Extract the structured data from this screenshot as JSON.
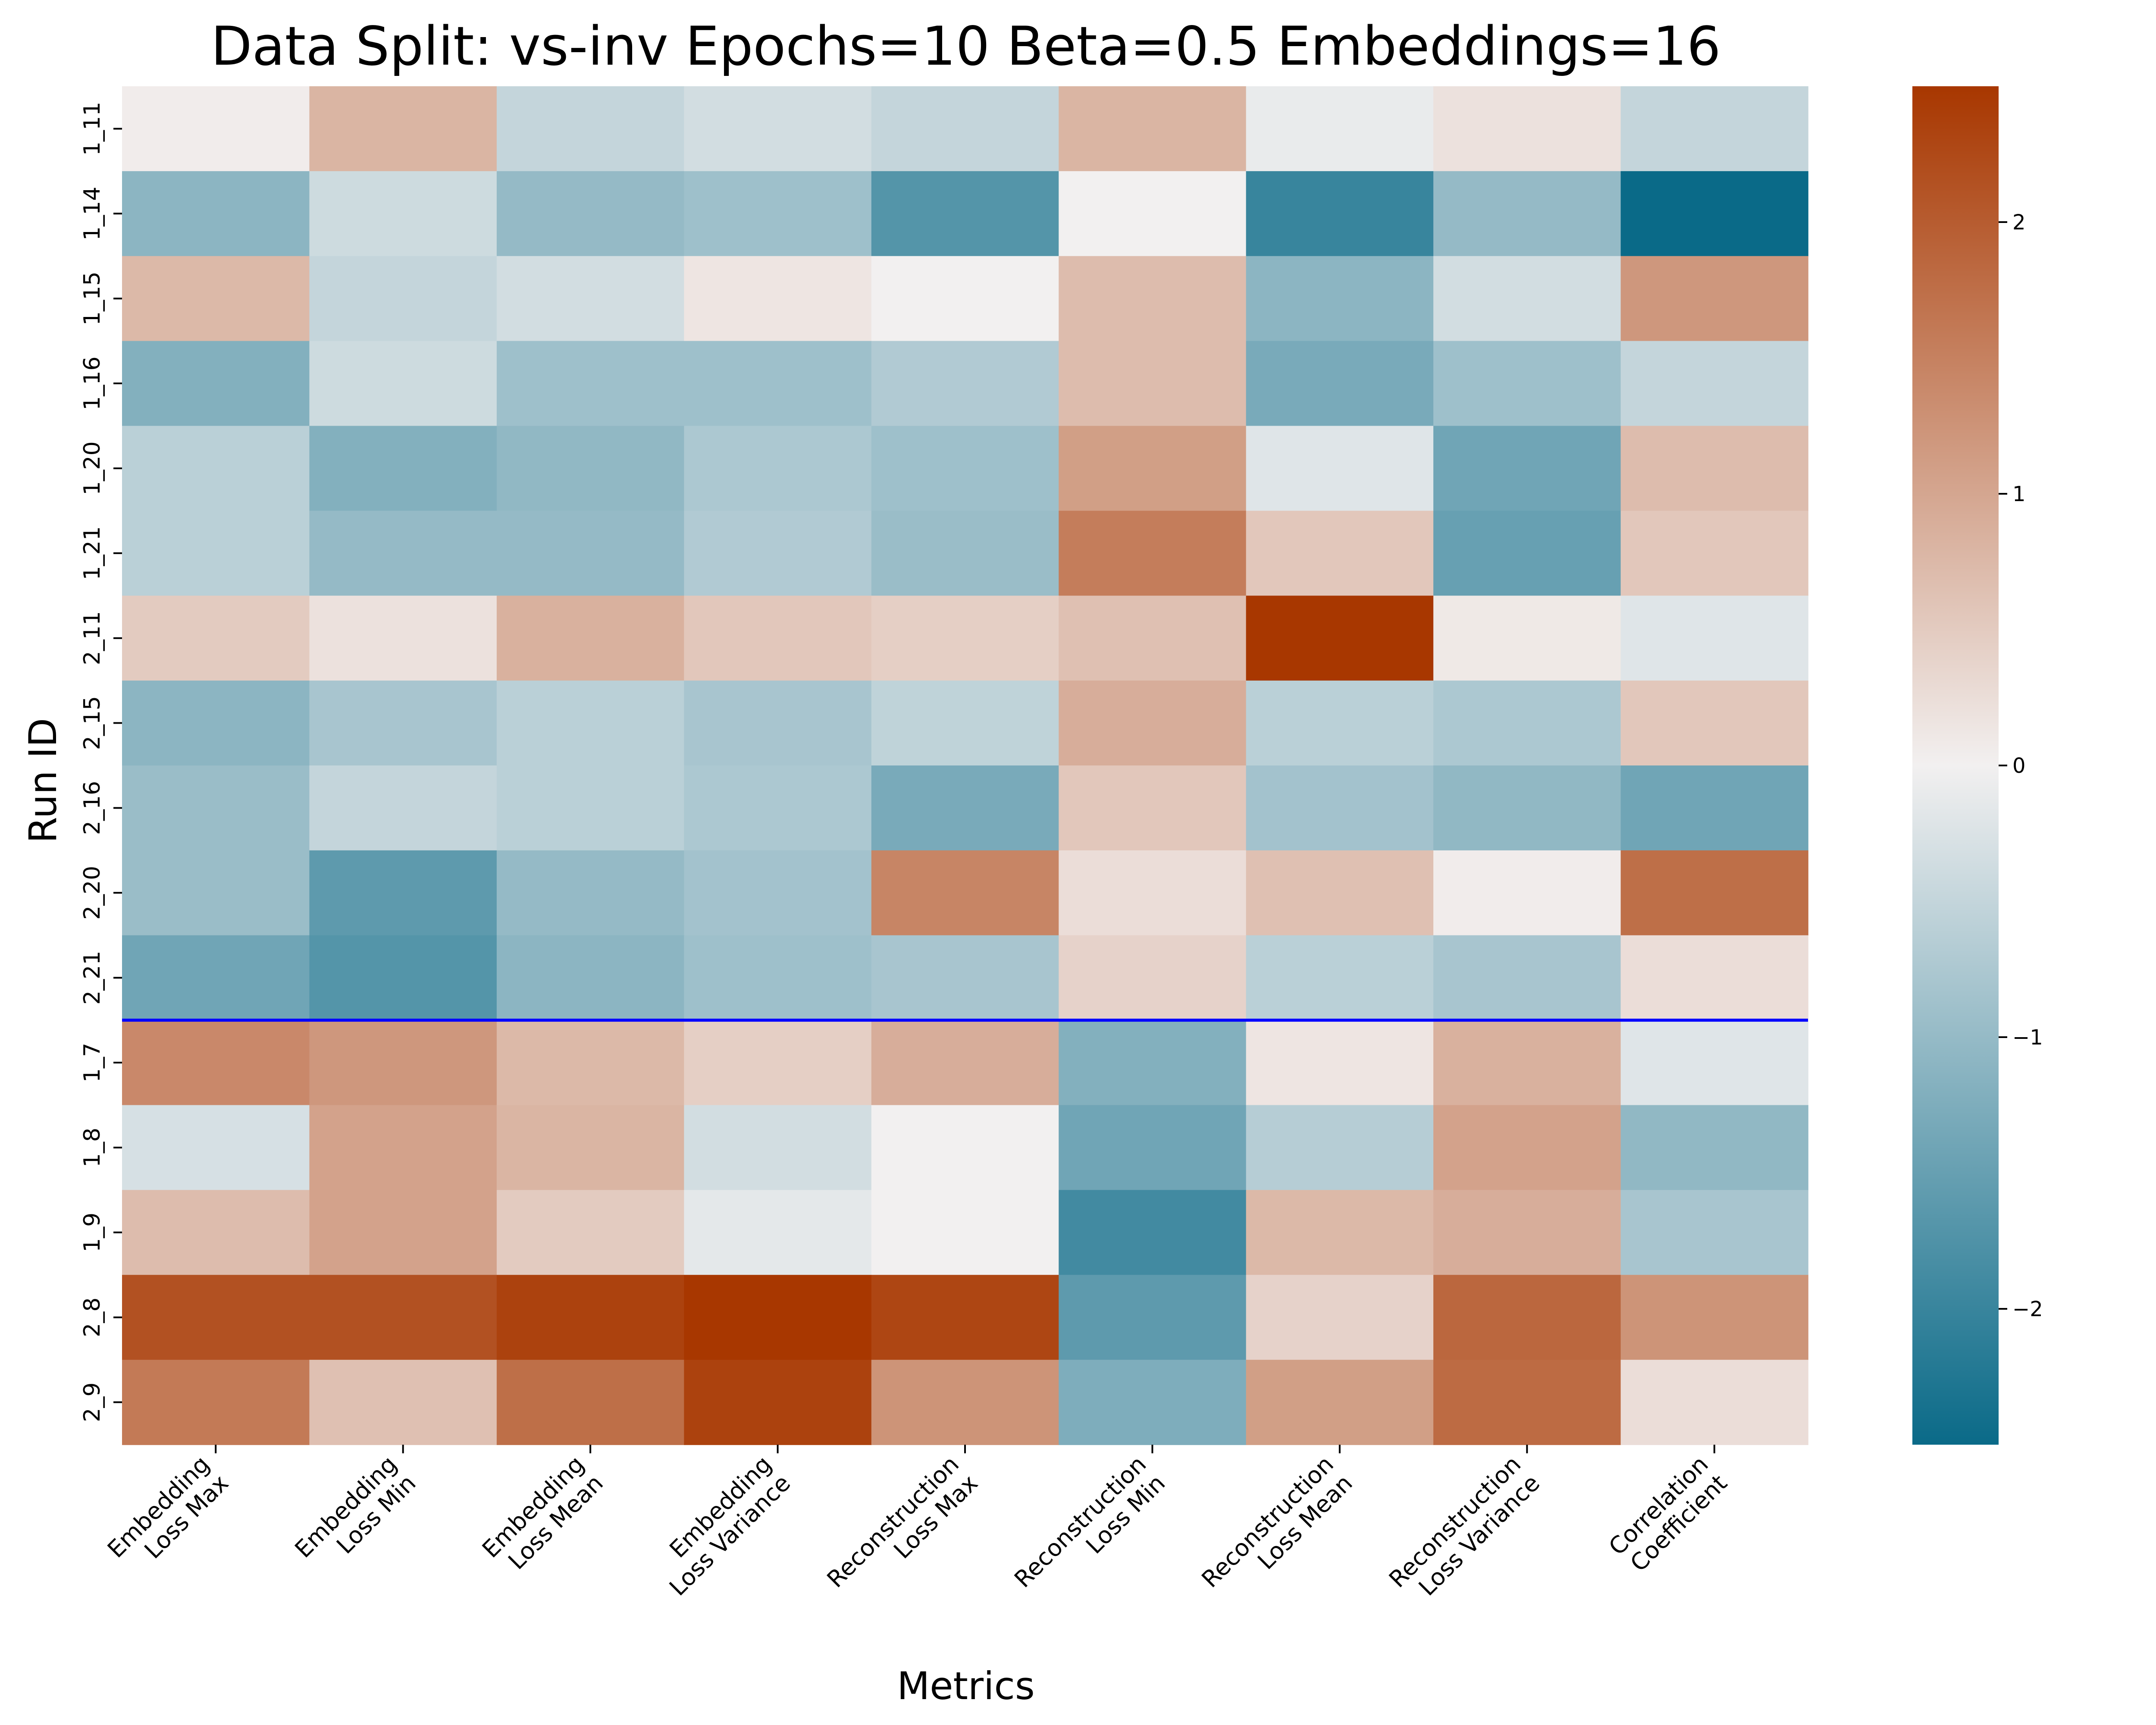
{
  "chart_data": {
    "type": "heatmap",
    "title": "Data Split: vs-inv Epochs=10 Beta=0.5 Embeddings=16",
    "xlabel": "Metrics",
    "ylabel": "Run ID",
    "x_categories": [
      [
        "Embedding",
        "Loss Max"
      ],
      [
        "Embedding",
        "Loss Min"
      ],
      [
        "Embedding",
        "Loss Mean"
      ],
      [
        "Embedding",
        "Loss Variance"
      ],
      [
        "Reconstruction",
        "Loss Max"
      ],
      [
        "Reconstruction",
        "Loss Min"
      ],
      [
        "Reconstruction",
        "Loss Mean"
      ],
      [
        "Reconstruction",
        "Loss Variance"
      ],
      [
        "Correlation",
        "Coefficient"
      ]
    ],
    "y_categories": [
      "1_11",
      "1_14",
      "1_15",
      "1_16",
      "1_20",
      "1_21",
      "2_11",
      "2_15",
      "2_16",
      "2_20",
      "2_21",
      "1_7",
      "1_8",
      "1_9",
      "2_8",
      "2_9"
    ],
    "values": [
      [
        0.05,
        0.8,
        -0.5,
        -0.35,
        -0.5,
        0.8,
        -0.1,
        0.2,
        -0.5
      ],
      [
        -1.1,
        -0.4,
        -1.0,
        -0.9,
        -1.7,
        0.0,
        -2.0,
        -1.0,
        -2.5
      ],
      [
        0.75,
        -0.5,
        -0.35,
        0.15,
        0.0,
        0.7,
        -1.1,
        -0.35,
        1.2
      ],
      [
        -1.2,
        -0.4,
        -0.9,
        -0.9,
        -0.7,
        0.7,
        -1.3,
        -0.9,
        -0.5
      ],
      [
        -0.6,
        -1.2,
        -1.05,
        -0.75,
        -0.9,
        1.1,
        -0.2,
        -1.4,
        0.7
      ],
      [
        -0.6,
        -1.0,
        -1.0,
        -0.7,
        -0.95,
        1.55,
        0.55,
        -1.5,
        0.55
      ],
      [
        0.5,
        0.2,
        0.85,
        0.55,
        0.45,
        0.65,
        2.5,
        0.1,
        -0.2
      ],
      [
        -1.1,
        -0.8,
        -0.6,
        -0.8,
        -0.55,
        0.9,
        -0.6,
        -0.75,
        0.55
      ],
      [
        -0.95,
        -0.5,
        -0.6,
        -0.75,
        -1.3,
        0.55,
        -0.85,
        -1.05,
        -1.4
      ],
      [
        -0.95,
        -1.6,
        -1.0,
        -0.85,
        1.45,
        0.25,
        0.65,
        0.05,
        1.75
      ],
      [
        -1.4,
        -1.7,
        -1.1,
        -0.9,
        -0.8,
        0.4,
        -0.6,
        -0.8,
        0.25
      ],
      [
        1.4,
        1.2,
        0.75,
        0.45,
        0.9,
        -1.2,
        0.15,
        0.85,
        -0.2
      ],
      [
        -0.3,
        1.05,
        0.8,
        -0.35,
        0.0,
        -1.4,
        -0.65,
        1.05,
        -1.05
      ],
      [
        0.7,
        1.05,
        0.5,
        -0.15,
        0.0,
        -1.9,
        0.75,
        0.9,
        -0.8
      ],
      [
        2.15,
        2.15,
        2.35,
        2.5,
        2.3,
        -1.6,
        0.4,
        1.85,
        1.25
      ],
      [
        1.6,
        0.65,
        1.75,
        2.35,
        1.25,
        -1.25,
        1.1,
        1.8,
        0.25
      ]
    ],
    "separator_after_row": "2_21",
    "separator_color": "#0000ff",
    "colormap": {
      "low": "#0a6a88",
      "mid": "#f2f0f0",
      "high": "#a83700"
    },
    "color_range": [
      -2.5,
      2.5
    ],
    "colorbar_ticks": [
      2,
      1,
      0,
      -1,
      -2
    ],
    "colorbar_tick_labels": [
      "2",
      "1",
      "0",
      "−1",
      "−2"
    ]
  }
}
